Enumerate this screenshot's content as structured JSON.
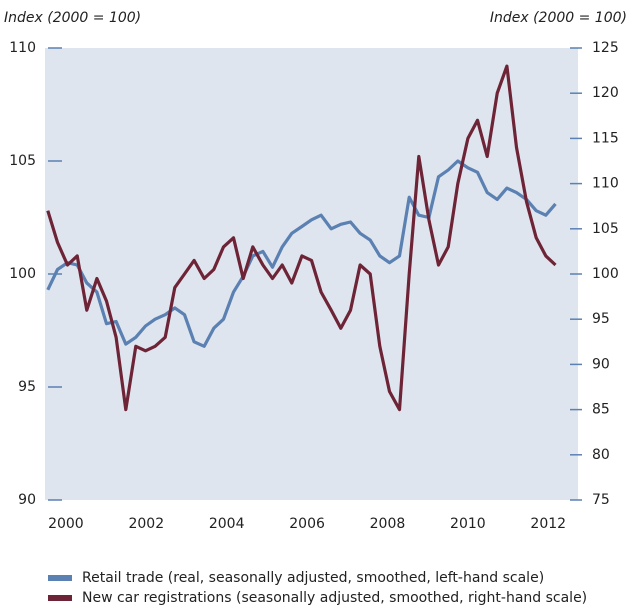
{
  "chart_data": {
    "type": "line",
    "y_label": "Index (2000 = 100)",
    "y2_label": "Index (2000 = 100)",
    "x": [
      1999.55,
      1999.79,
      2000.04,
      2000.28,
      2000.52,
      2000.77,
      2001.01,
      2001.25,
      2001.49,
      2001.74,
      2001.98,
      2002.22,
      2002.47,
      2002.71,
      2002.95,
      2003.19,
      2003.44,
      2003.68,
      2003.92,
      2004.17,
      2004.41,
      2004.65,
      2004.9,
      2005.14,
      2005.38,
      2005.62,
      2005.87,
      2006.11,
      2006.35,
      2006.6,
      2006.84,
      2007.08,
      2007.32,
      2007.57,
      2007.81,
      2008.05,
      2008.3,
      2008.54,
      2008.78,
      2009.03,
      2009.27,
      2009.51,
      2009.75,
      2010.0,
      2010.24,
      2010.48,
      2010.73,
      2010.97,
      2011.21,
      2011.46,
      2011.7,
      2011.94,
      2012.18
    ],
    "series": [
      {
        "name": "Retail trade (real, seasonally adjusted, smoothed, left-hand scale)",
        "color": "#5b80b2",
        "axis": "y",
        "values": [
          99.3,
          100.2,
          100.5,
          100.4,
          99.6,
          99.2,
          97.8,
          97.9,
          96.9,
          97.2,
          97.7,
          98.0,
          98.2,
          98.5,
          98.2,
          97.0,
          96.8,
          97.6,
          98.0,
          99.2,
          99.9,
          100.8,
          101.0,
          100.3,
          101.2,
          101.8,
          102.1,
          102.4,
          102.6,
          102.0,
          102.2,
          102.3,
          101.8,
          101.5,
          100.8,
          100.5,
          100.8,
          103.4,
          102.6,
          102.5,
          104.3,
          104.6,
          105.0,
          104.7,
          104.5,
          103.6,
          103.3,
          103.8,
          103.6,
          103.3,
          102.8,
          102.6,
          103.1
        ]
      },
      {
        "name": "New car registrations (seasonally adjusted, smoothed, right-hand scale)",
        "color": "#6e2437",
        "axis": "y2",
        "values": [
          107,
          103.5,
          101,
          102,
          96,
          99.5,
          97,
          93,
          85,
          92,
          91.5,
          92,
          93,
          98.5,
          100,
          101.5,
          99.5,
          100.5,
          103,
          104,
          99.5,
          103,
          101,
          99.5,
          101,
          99,
          102,
          101.5,
          98,
          96,
          94,
          96,
          101,
          100,
          92,
          87,
          85,
          100,
          113,
          106,
          101,
          103,
          110,
          115,
          117,
          113,
          120,
          123,
          114,
          108,
          104,
          102,
          101
        ]
      }
    ],
    "xlim": [
      1999.48,
      2012.74
    ],
    "xticks": [
      2000,
      2002,
      2004,
      2006,
      2008,
      2010,
      2012
    ],
    "ylim": [
      90,
      110
    ],
    "yticks": [
      90,
      95,
      100,
      105,
      110
    ],
    "y2lim": [
      75,
      125
    ],
    "y2ticks": [
      75,
      80,
      85,
      90,
      95,
      100,
      105,
      110,
      115,
      120,
      125
    ],
    "legend": "bottom"
  }
}
